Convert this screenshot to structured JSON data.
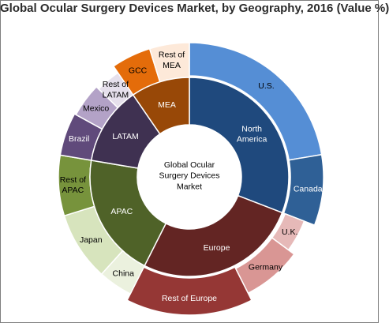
{
  "chart_data": {
    "type": "sunburst",
    "title": "Global Ocular Surgery Devices Market, by Geography, 2016 (Value %)",
    "center_label": [
      "Global Ocular",
      "Surgery Devices",
      "Market"
    ],
    "start_angle_deg": 0,
    "regions": [
      {
        "name": "North America",
        "label_lines": [
          "North",
          "America"
        ],
        "color": "#1f497d",
        "label_color": "#ffffff",
        "countries": [
          {
            "name": "U.S.",
            "label_lines": [
              "U.S."
            ],
            "value": 21,
            "color": "#558ed5",
            "label_color": "#000000"
          },
          {
            "name": "Canada",
            "label_lines": [
              "Canada"
            ],
            "value": 8,
            "color": "#2f6096",
            "label_color": "#ffffff"
          }
        ]
      },
      {
        "name": "Europe",
        "label_lines": [
          "Europe"
        ],
        "color": "#632523",
        "label_color": "#ffffff",
        "countries": [
          {
            "name": "U.K.",
            "label_lines": [
              "U.K."
            ],
            "value": 4,
            "color": "#e6b9b8",
            "label_color": "#000000"
          },
          {
            "name": "Germany",
            "label_lines": [
              "Germany"
            ],
            "value": 7,
            "color": "#d99694",
            "label_color": "#000000"
          },
          {
            "name": "Rest of Europe",
            "label_lines": [
              "Rest of Europe"
            ],
            "value": 14,
            "color": "#953735",
            "label_color": "#ffffff"
          }
        ]
      },
      {
        "name": "APAC",
        "label_lines": [
          "APAC"
        ],
        "color": "#4f6228",
        "label_color": "#ffffff",
        "countries": [
          {
            "name": "China",
            "label_lines": [
              "China"
            ],
            "value": 4,
            "color": "#ebf1de",
            "label_color": "#000000"
          },
          {
            "name": "Japan",
            "label_lines": [
              "Japan"
            ],
            "value": 8,
            "color": "#d7e4bd",
            "label_color": "#000000"
          },
          {
            "name": "Rest of APAC",
            "label_lines": [
              "Rest of",
              "APAC"
            ],
            "value": 7,
            "color": "#77933c",
            "label_color": "#000000"
          }
        ]
      },
      {
        "name": "LATAM",
        "label_lines": [
          "LATAM"
        ],
        "color": "#3f3151",
        "label_color": "#ffffff",
        "countries": [
          {
            "name": "Brazil",
            "label_lines": [
              "Brazil"
            ],
            "value": 5,
            "color": "#604a7b",
            "label_color": "#ffffff"
          },
          {
            "name": "Mexico",
            "label_lines": [
              "Mexico"
            ],
            "value": 4,
            "color": "#b3a2c7",
            "label_color": "#000000"
          },
          {
            "name": "Rest of LATAM",
            "label_lines": [
              "Rest of",
              "LATAM"
            ],
            "value": 3,
            "color": "#e6e0ec",
            "label_color": "#000000"
          }
        ]
      },
      {
        "name": "MEA",
        "label_lines": [
          "MEA"
        ],
        "color": "#984807",
        "label_color": "#ffffff",
        "countries": [
          {
            "name": "GCC",
            "label_lines": [
              "GCC"
            ],
            "value": 4.5,
            "color": "#e46c0a",
            "label_color": "#000000"
          },
          {
            "name": "Rest of MEA",
            "label_lines": [
              "Rest of",
              "MEA"
            ],
            "value": 4.5,
            "color": "#fde9d9",
            "label_color": "#000000"
          }
        ]
      }
    ]
  }
}
